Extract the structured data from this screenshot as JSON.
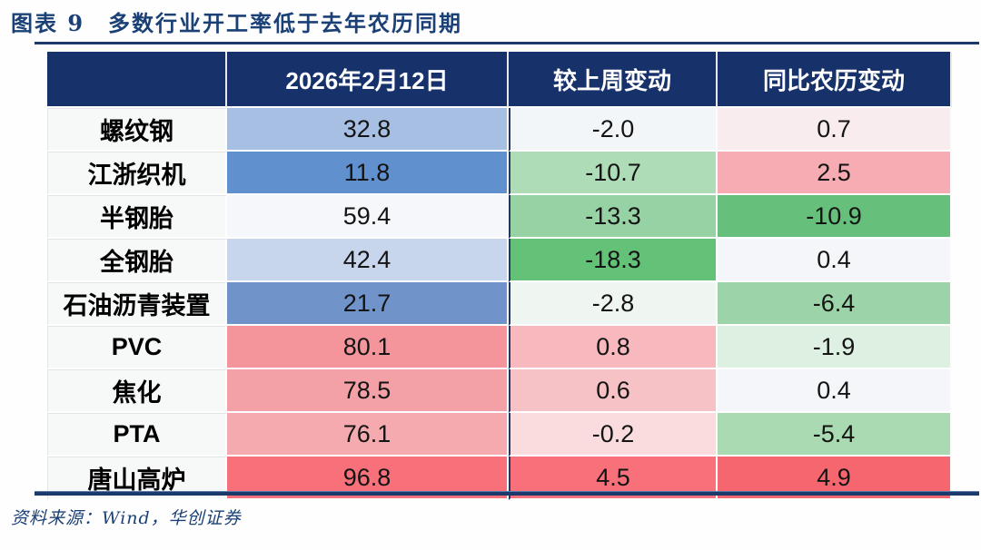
{
  "title": "图表 9　多数行业开工率低于去年农历同期",
  "source": {
    "text": "资料来源：Wind，华创证券"
  },
  "colors": {
    "header_bg": "#17316B",
    "rule": "#1B3A6B",
    "title_text": "#1A4076",
    "body_col_separator": "#26365E",
    "label_cell_bg": "#F7F8F8"
  },
  "table": {
    "corner_label": "",
    "headers": [
      "2026年2月12日",
      "较上周变动",
      "同比农历变动"
    ],
    "rows": [
      {
        "label": "螺纹钢",
        "cells": [
          {
            "value": "32.8",
            "bg": "#A6BFE2"
          },
          {
            "value": "-2.0",
            "bg": "#F3F6F9"
          },
          {
            "value": "0.7",
            "bg": "#F9ECEF"
          }
        ]
      },
      {
        "label": "江浙织机",
        "cells": [
          {
            "value": "11.8",
            "bg": "#6190CE"
          },
          {
            "value": "-10.7",
            "bg": "#AEDCB6"
          },
          {
            "value": "2.5",
            "bg": "#F6ACB2"
          }
        ]
      },
      {
        "label": "半钢胎",
        "cells": [
          {
            "value": "59.4",
            "bg": "#F5F7FA"
          },
          {
            "value": "-13.3",
            "bg": "#96D2A4"
          },
          {
            "value": "-10.9",
            "bg": "#66BF7B"
          }
        ]
      },
      {
        "label": "全钢胎",
        "cells": [
          {
            "value": "42.4",
            "bg": "#C8D6ED"
          },
          {
            "value": "-18.3",
            "bg": "#63C178"
          },
          {
            "value": "0.4",
            "bg": "#F4F6F9"
          }
        ]
      },
      {
        "label": "石油沥青装置",
        "cells": [
          {
            "value": "21.7",
            "bg": "#7093C9"
          },
          {
            "value": "-2.8",
            "bg": "#EFF5F1"
          },
          {
            "value": "-6.4",
            "bg": "#9CD3A8"
          }
        ]
      },
      {
        "label": "PVC",
        "cells": [
          {
            "value": "80.1",
            "bg": "#F4949B"
          },
          {
            "value": "0.8",
            "bg": "#F8B9BE"
          },
          {
            "value": "-1.9",
            "bg": "#DDF0E2"
          }
        ]
      },
      {
        "label": "焦化",
        "cells": [
          {
            "value": "78.5",
            "bg": "#F3A1A7"
          },
          {
            "value": "0.6",
            "bg": "#F7C2C5"
          },
          {
            "value": "0.4",
            "bg": "#F4F6F9"
          }
        ]
      },
      {
        "label": "PTA",
        "cells": [
          {
            "value": "76.1",
            "bg": "#F5AAAF"
          },
          {
            "value": "-0.2",
            "bg": "#FADCDF"
          },
          {
            "value": "-5.4",
            "bg": "#A9DAB2"
          }
        ]
      },
      {
        "label": "唐山高炉",
        "cells": [
          {
            "value": "96.8",
            "bg": "#F7707A"
          },
          {
            "value": "4.5",
            "bg": "#F7707A"
          },
          {
            "value": "4.9",
            "bg": "#F6666F"
          }
        ]
      }
    ]
  },
  "chart_data": {
    "type": "table",
    "title": "图表 9 多数行业开工率低于去年农历同期",
    "columns": [
      "2026年2月12日",
      "较上周变动",
      "同比农历变动"
    ],
    "row_labels": [
      "螺纹钢",
      "江浙织机",
      "半钢胎",
      "全钢胎",
      "石油沥青装置",
      "PVC",
      "焦化",
      "PTA",
      "唐山高炉"
    ],
    "values": [
      [
        32.8,
        -2.0,
        0.7
      ],
      [
        11.8,
        -10.7,
        2.5
      ],
      [
        59.4,
        -13.3,
        -10.9
      ],
      [
        42.4,
        -18.3,
        0.4
      ],
      [
        21.7,
        -2.8,
        -6.4
      ],
      [
        80.1,
        0.8,
        -1.9
      ],
      [
        78.5,
        0.6,
        0.4
      ],
      [
        76.1,
        -0.2,
        -5.4
      ],
      [
        96.8,
        4.5,
        4.9
      ]
    ],
    "legend_note": "heatmap-styled cells: blue = low operating rate, red = high operating rate, green = decline, pink/red = increase"
  }
}
